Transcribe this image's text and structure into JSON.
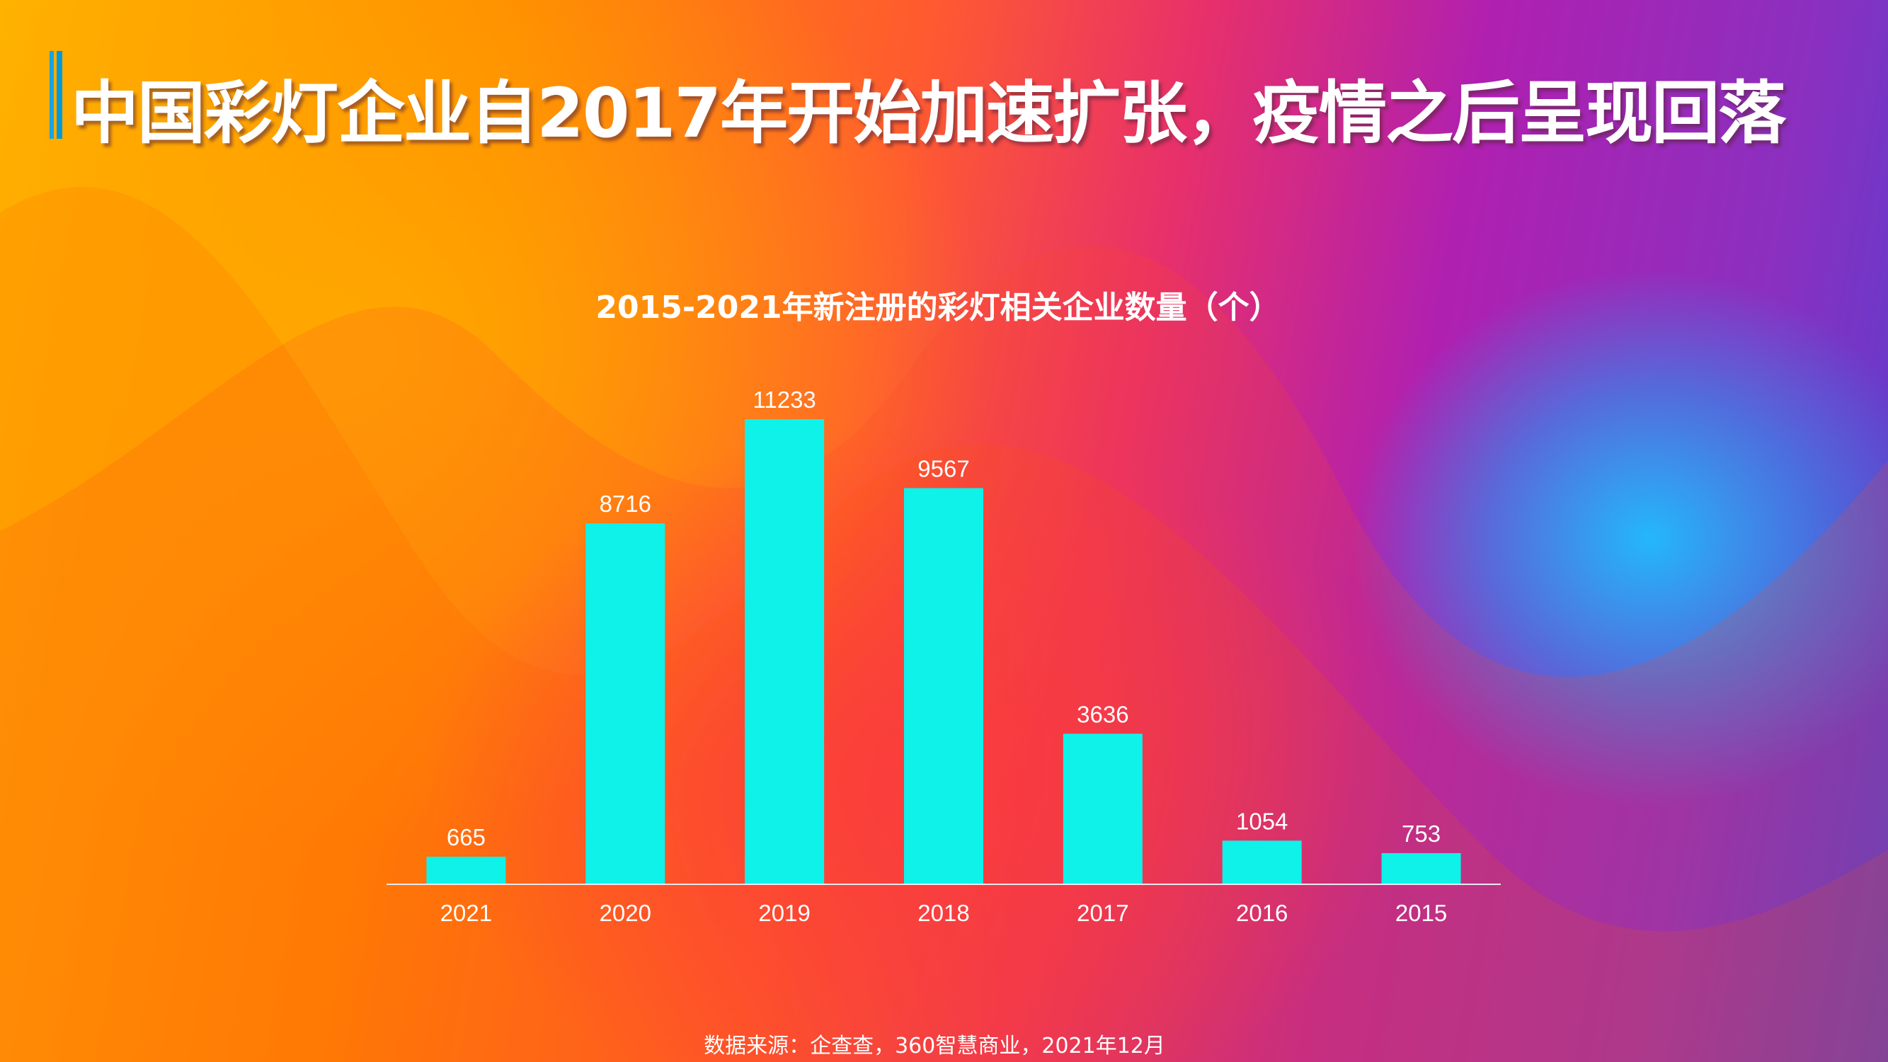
{
  "header": {
    "title": "中国彩灯企业自2017年开始加速扩张，疫情之后呈现回落"
  },
  "chart_data": {
    "type": "bar",
    "title": "2015-2021年新注册的彩灯相关企业数量（个）",
    "categories": [
      "2021",
      "2020",
      "2019",
      "2018",
      "2017",
      "2016",
      "2015"
    ],
    "values": [
      665,
      8716,
      11233,
      9567,
      3636,
      1054,
      753
    ],
    "bar_color": "#0ef2ea",
    "data_labels": true,
    "grid": false,
    "xlabel": "",
    "ylabel": ""
  },
  "footer": {
    "source": "数据来源：企查查，360智慧商业，2021年12月"
  }
}
